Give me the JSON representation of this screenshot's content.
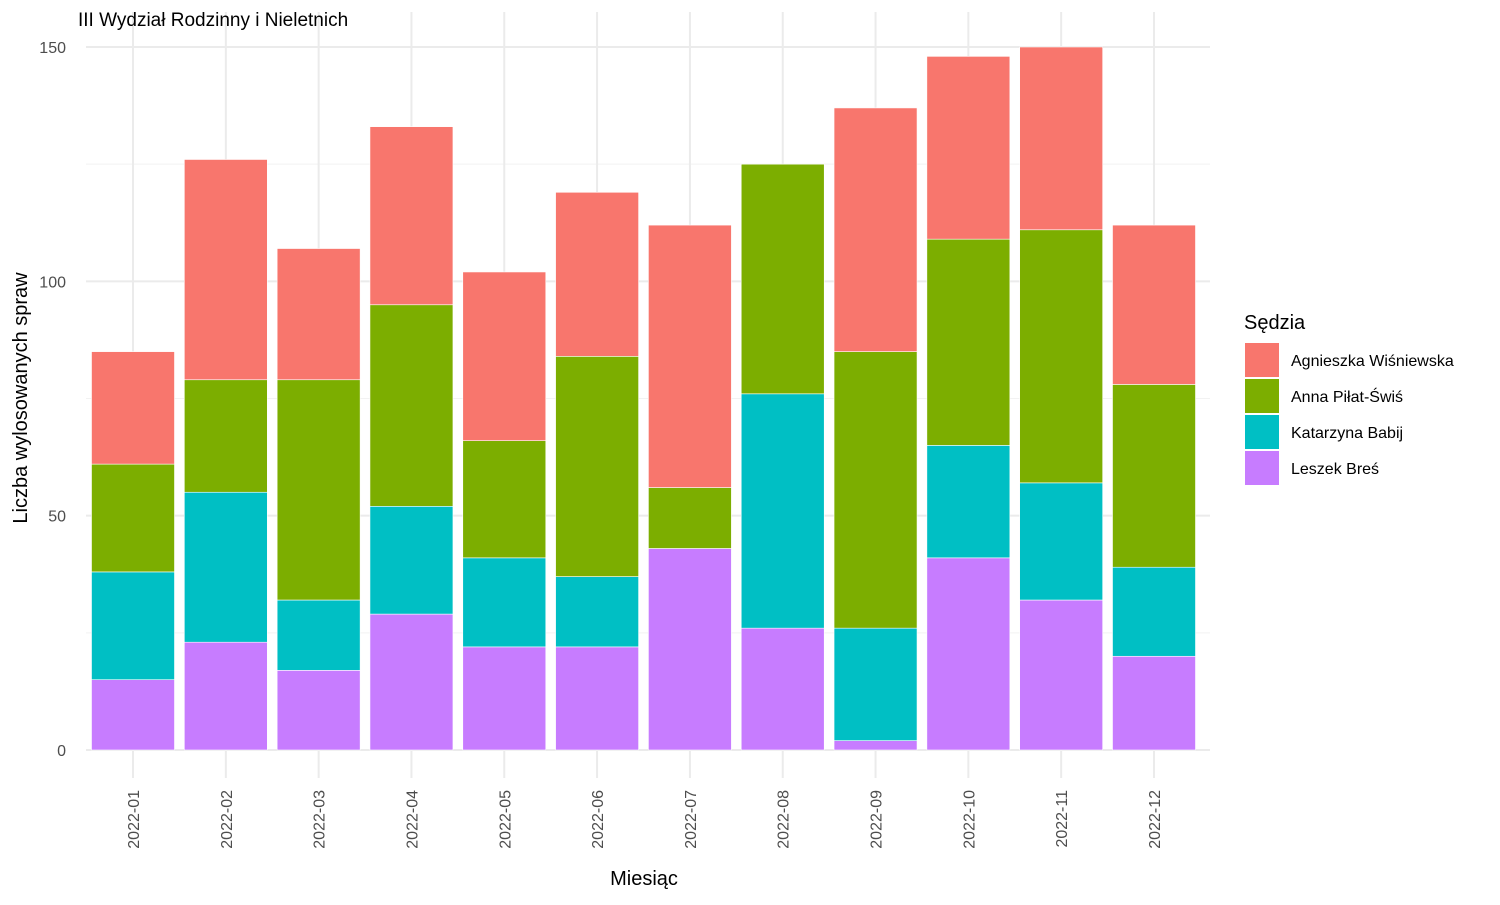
{
  "chart_data": {
    "type": "bar",
    "stacked": true,
    "title": "III Wydział Rodzinny i Nieletnich",
    "xlabel": "Miesiąc",
    "ylabel": "Liczba wylosowanych spraw",
    "ylim": [
      0,
      150
    ],
    "yticks": [
      0,
      50,
      100,
      150
    ],
    "grid": true,
    "legend_title": "Sędzia",
    "legend_position": "right",
    "categories": [
      "2022-01",
      "2022-02",
      "2022-03",
      "2022-04",
      "2022-05",
      "2022-06",
      "2022-07",
      "2022-08",
      "2022-09",
      "2022-10",
      "2022-11",
      "2022-12"
    ],
    "series": [
      {
        "name": "Agnieszka Wiśniewska",
        "color": "#F8766D",
        "values": [
          24,
          47,
          28,
          38,
          36,
          35,
          56,
          0,
          52,
          39,
          39,
          34
        ]
      },
      {
        "name": "Anna Piłat-Świś",
        "color": "#7CAE00",
        "values": [
          23,
          24,
          47,
          43,
          25,
          47,
          13,
          49,
          59,
          44,
          54,
          39
        ]
      },
      {
        "name": "Katarzyna Babij",
        "color": "#00BFC4",
        "values": [
          23,
          32,
          15,
          23,
          19,
          15,
          0,
          50,
          24,
          24,
          25,
          19
        ]
      },
      {
        "name": "Leszek Breś",
        "color": "#C77CFF",
        "values": [
          15,
          23,
          17,
          29,
          22,
          22,
          43,
          26,
          2,
          41,
          32,
          20
        ]
      }
    ]
  }
}
